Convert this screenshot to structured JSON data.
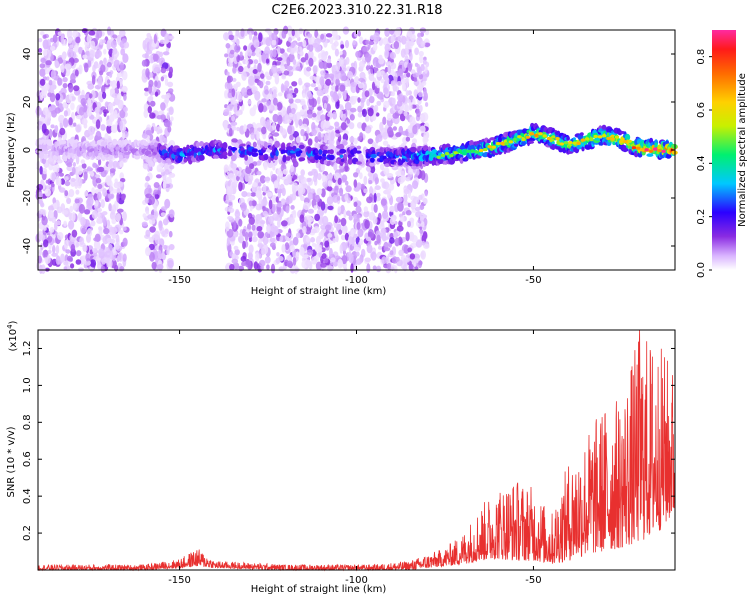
{
  "title": "C2E6.2023.310.22.31.R18",
  "colors": {
    "snr_line": "#e8302f",
    "axis": "#000000"
  },
  "chart_data": [
    {
      "type": "heatmap",
      "xlabel": "Height of straight line (km)",
      "ylabel": "Frequency (Hz)",
      "xlim": [
        -190,
        -10
      ],
      "ylim": [
        -50,
        50
      ],
      "x_ticks": [
        -150,
        -100,
        -50
      ],
      "y_ticks": [
        -40,
        -20,
        0,
        20,
        40
      ],
      "x_tick_labels": [
        "-150",
        "-100",
        "-50"
      ],
      "y_tick_labels": [
        "-40",
        "-20",
        "0",
        "20",
        "40"
      ],
      "colorbar": {
        "label": "Normalized spectral amplitude",
        "range": [
          0,
          0.9
        ],
        "ticks": [
          0.0,
          0.2,
          0.4,
          0.6,
          0.8
        ],
        "tick_labels": [
          "0.0",
          "0.2",
          "0.4",
          "0.6",
          "0.8"
        ],
        "colormap": "rainbow"
      },
      "ridge_frequency": {
        "x": [
          -190,
          -160,
          -150,
          -140,
          -90,
          -75,
          -65,
          -55,
          -50,
          -45,
          -40,
          -35,
          -30,
          -25,
          -20,
          -15,
          -10
        ],
        "y": [
          0,
          0,
          -2,
          0,
          -3,
          -2,
          0,
          4,
          7,
          5,
          2,
          4,
          6,
          4,
          1,
          0,
          0
        ]
      },
      "ridge_amplitude": {
        "x": [
          -190,
          -160,
          -150,
          -140,
          -90,
          -75,
          -65,
          -55,
          -50,
          -45,
          -40,
          -35,
          -30,
          -25,
          -20,
          -15,
          -10
        ],
        "y": [
          0.12,
          0.18,
          0.35,
          0.3,
          0.3,
          0.45,
          0.55,
          0.55,
          0.6,
          0.55,
          0.55,
          0.58,
          0.62,
          0.65,
          0.72,
          0.8,
          0.85
        ]
      },
      "background_noise_regions_x": [
        [
          -190,
          -165
        ],
        [
          -160,
          -152
        ],
        [
          -137,
          -80
        ]
      ],
      "noise_gap_x": [
        -150,
        -137
      ]
    },
    {
      "type": "line",
      "xlabel": "Height of straight line (km)",
      "ylabel": "SNR (10 * v/v)",
      "y_scale_label": "(x10",
      "y_scale_exponent": "4",
      "y_scale_suffix": ")",
      "xlim": [
        -190,
        -10
      ],
      "ylim": [
        0,
        1.3
      ],
      "x_ticks": [
        -150,
        -100,
        -50
      ],
      "y_ticks": [
        0.2,
        0.4,
        0.6,
        0.8,
        1.0,
        1.2
      ],
      "x_tick_labels": [
        "-150",
        "-100",
        "-50"
      ],
      "y_tick_labels": [
        "0.2",
        "0.4",
        "0.6",
        "0.8",
        "1.0",
        "1.2"
      ],
      "series": [
        {
          "envelope_x": [
            -190,
            -160,
            -150,
            -145,
            -140,
            -120,
            -95,
            -85,
            -75,
            -70,
            -65,
            -60,
            -55,
            -50,
            -45,
            -40,
            -35,
            -30,
            -25,
            -20,
            -15,
            -10
          ],
          "envelope_hi": [
            0.03,
            0.03,
            0.06,
            0.12,
            0.05,
            0.03,
            0.03,
            0.05,
            0.12,
            0.2,
            0.35,
            0.45,
            0.5,
            0.45,
            0.3,
            0.6,
            0.75,
            0.9,
            0.95,
            1.3,
            1.25,
            1.1
          ],
          "envelope_lo": [
            0.0,
            0.0,
            0.01,
            0.02,
            0.01,
            0.0,
            0.0,
            0.0,
            0.02,
            0.03,
            0.05,
            0.06,
            0.05,
            0.05,
            0.03,
            0.05,
            0.08,
            0.1,
            0.12,
            0.15,
            0.2,
            0.3
          ],
          "peak_x": -20,
          "peak_y": 1.3
        }
      ]
    }
  ]
}
